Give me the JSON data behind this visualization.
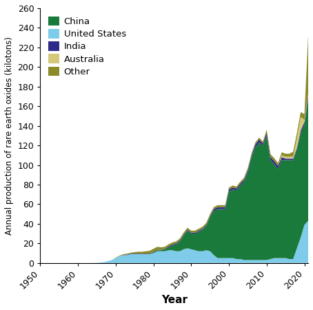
{
  "years": [
    1950,
    1951,
    1952,
    1953,
    1954,
    1955,
    1956,
    1957,
    1958,
    1959,
    1960,
    1961,
    1962,
    1963,
    1964,
    1965,
    1966,
    1967,
    1968,
    1969,
    1970,
    1971,
    1972,
    1973,
    1974,
    1975,
    1976,
    1977,
    1978,
    1979,
    1980,
    1981,
    1982,
    1983,
    1984,
    1985,
    1986,
    1987,
    1988,
    1989,
    1990,
    1991,
    1992,
    1993,
    1994,
    1995,
    1996,
    1997,
    1998,
    1999,
    2000,
    2001,
    2002,
    2003,
    2004,
    2005,
    2006,
    2007,
    2008,
    2009,
    2010,
    2011,
    2012,
    2013,
    2014,
    2015,
    2016,
    2017,
    2018,
    2019,
    2020,
    2021
  ],
  "usa": [
    0,
    0,
    0,
    0,
    0,
    0,
    0,
    0,
    0,
    0,
    0,
    0,
    0,
    0,
    0,
    0.2,
    0.5,
    1,
    2,
    3,
    5,
    7,
    8,
    8,
    9,
    9,
    9,
    9,
    9,
    9,
    10,
    12,
    12,
    12,
    13,
    13,
    12,
    12,
    14,
    15,
    14,
    13,
    12,
    12,
    13,
    12,
    8,
    5,
    5,
    5,
    5,
    5,
    4,
    4,
    3,
    3,
    3,
    3,
    3,
    3,
    3,
    4,
    5,
    5,
    5,
    5,
    4,
    4,
    15,
    26,
    39,
    43
  ],
  "china": [
    0,
    0,
    0,
    0,
    0,
    0,
    0,
    0,
    0,
    0,
    0,
    0,
    0,
    0,
    0,
    0,
    0,
    0,
    0,
    0,
    0,
    0,
    0,
    0,
    0,
    0,
    0,
    0,
    0,
    0,
    1,
    1,
    1,
    2,
    3,
    5,
    7,
    10,
    14,
    18,
    16,
    17,
    20,
    22,
    25,
    35,
    45,
    50,
    50,
    50,
    68,
    70,
    70,
    75,
    80,
    90,
    105,
    115,
    120,
    117,
    127,
    101,
    96,
    91,
    100,
    100,
    101,
    101,
    101,
    106,
    102,
    125
  ],
  "india": [
    0,
    0,
    0,
    0,
    0,
    0,
    0,
    0,
    0,
    0,
    0,
    0,
    0,
    0,
    0,
    0,
    0,
    0,
    0,
    0,
    0,
    0,
    0,
    0.5,
    0.5,
    0.5,
    0.5,
    0.5,
    0.5,
    0.5,
    0.5,
    0.5,
    0.5,
    0.5,
    1,
    1,
    1,
    1,
    1,
    1,
    1,
    1,
    1,
    1,
    1,
    1,
    2,
    2,
    2,
    2,
    2,
    2,
    2,
    2,
    2,
    2,
    2,
    3,
    3,
    2,
    3,
    3,
    3,
    3,
    3,
    1.5,
    1.5,
    1.5,
    1.5,
    3,
    3,
    3
  ],
  "australia": [
    0,
    0,
    0,
    0,
    0,
    0,
    0,
    0,
    0,
    0,
    0,
    0,
    0,
    0,
    0,
    0,
    0,
    0,
    0,
    0,
    0,
    0,
    0,
    0,
    0,
    0,
    0,
    0,
    0,
    0,
    0,
    0,
    0,
    0,
    0,
    0,
    0,
    0,
    0,
    0,
    0,
    0,
    0,
    0,
    0,
    0,
    0,
    0,
    0,
    0,
    0,
    0,
    0,
    0,
    0,
    0,
    0,
    0,
    0,
    0,
    0,
    0,
    0,
    0,
    2,
    2,
    2,
    2,
    10,
    14,
    2,
    2
  ],
  "other": [
    0,
    0,
    0,
    0,
    0,
    0,
    0,
    0,
    0,
    0,
    0,
    0,
    0,
    0,
    0,
    0,
    0,
    0,
    0,
    0,
    0.5,
    0.5,
    1,
    1,
    1,
    1.5,
    2,
    2,
    2.5,
    3,
    3,
    3,
    2.5,
    2,
    2,
    2,
    2,
    2,
    2,
    2,
    2,
    2,
    2,
    2,
    2,
    2,
    2,
    2,
    2,
    2,
    2,
    2,
    2,
    2,
    2,
    2,
    2,
    2,
    2,
    2,
    3,
    3,
    3,
    3,
    3,
    3,
    3,
    5,
    5,
    5,
    6,
    60
  ],
  "colors": {
    "china": "#1a7a3c",
    "usa": "#7eccea",
    "india": "#2e2a8a",
    "australia": "#d4c97a",
    "other": "#8b8b2a"
  },
  "ylabel": "Annual production of rare earth oxides (kilotons)",
  "xlabel": "Year",
  "ylim": [
    0,
    260
  ],
  "xlim": [
    1950,
    2021
  ],
  "yticks": [
    0,
    20,
    40,
    60,
    80,
    100,
    120,
    140,
    160,
    180,
    200,
    220,
    240,
    260
  ],
  "xticks": [
    1950,
    1960,
    1970,
    1980,
    1990,
    2000,
    2010,
    2020
  ],
  "legend_labels": [
    "China",
    "United States",
    "India",
    "Australia",
    "Other"
  ],
  "legend_colors": [
    "#1a7a3c",
    "#7eccea",
    "#2e2a8a",
    "#d4c97a",
    "#8b8b2a"
  ],
  "bg_color": "#ffffff"
}
